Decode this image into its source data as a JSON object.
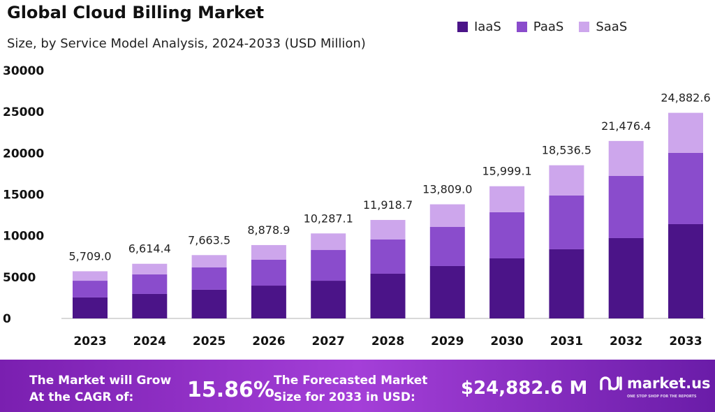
{
  "chart_data": {
    "type": "bar",
    "stacked": true,
    "title": "Global Cloud Billing Market",
    "subtitle": "Size, by Service Model Analysis, 2024-2033 (USD Million)",
    "categories": [
      "2023",
      "2024",
      "2025",
      "2026",
      "2027",
      "2028",
      "2029",
      "2030",
      "2031",
      "2032",
      "2033"
    ],
    "series": [
      {
        "name": "IaaS",
        "color": "#4b1488",
        "values": [
          2540,
          2960,
          3470,
          3970,
          4560,
          5410,
          6340,
          7270,
          8370,
          9720,
          11410
        ]
      },
      {
        "name": "PaaS",
        "color": "#8a4ccc",
        "values": [
          2020,
          2370,
          2700,
          3130,
          3720,
          4140,
          4730,
          5580,
          6510,
          7520,
          8620
        ]
      },
      {
        "name": "SaaS",
        "color": "#cda6ec",
        "values": [
          1149,
          1284.4,
          1493.5,
          1778.9,
          2007.1,
          2368.7,
          2739,
          3149.1,
          3656.5,
          4236.4,
          4852.6
        ]
      }
    ],
    "totals_labels": [
      "5,709.0",
      "6,614.4",
      "7,663.5",
      "8,878.9",
      "10,287.1",
      "11,918.7",
      "13,809.0",
      "15,999.1",
      "18,536.5",
      "21,476.4",
      "24,882.6"
    ],
    "yticks": [
      "0",
      "5000",
      "10000",
      "15000",
      "20000",
      "25000",
      "30000"
    ],
    "ylim": [
      0,
      30000
    ],
    "grid": false,
    "legend_position": "top-right"
  },
  "footer": {
    "cagr_text_1": "The Market will Grow",
    "cagr_text_2": "At the CAGR of:",
    "cagr_value": "15.86%",
    "forecast_text_1": "The Forecasted Market",
    "forecast_text_2": "Size for 2033 in USD:",
    "forecast_value": "$24,882.6 M",
    "logo_text": "market.us",
    "logo_tagline": "ONE STOP SHOP FOR THE REPORTS"
  }
}
